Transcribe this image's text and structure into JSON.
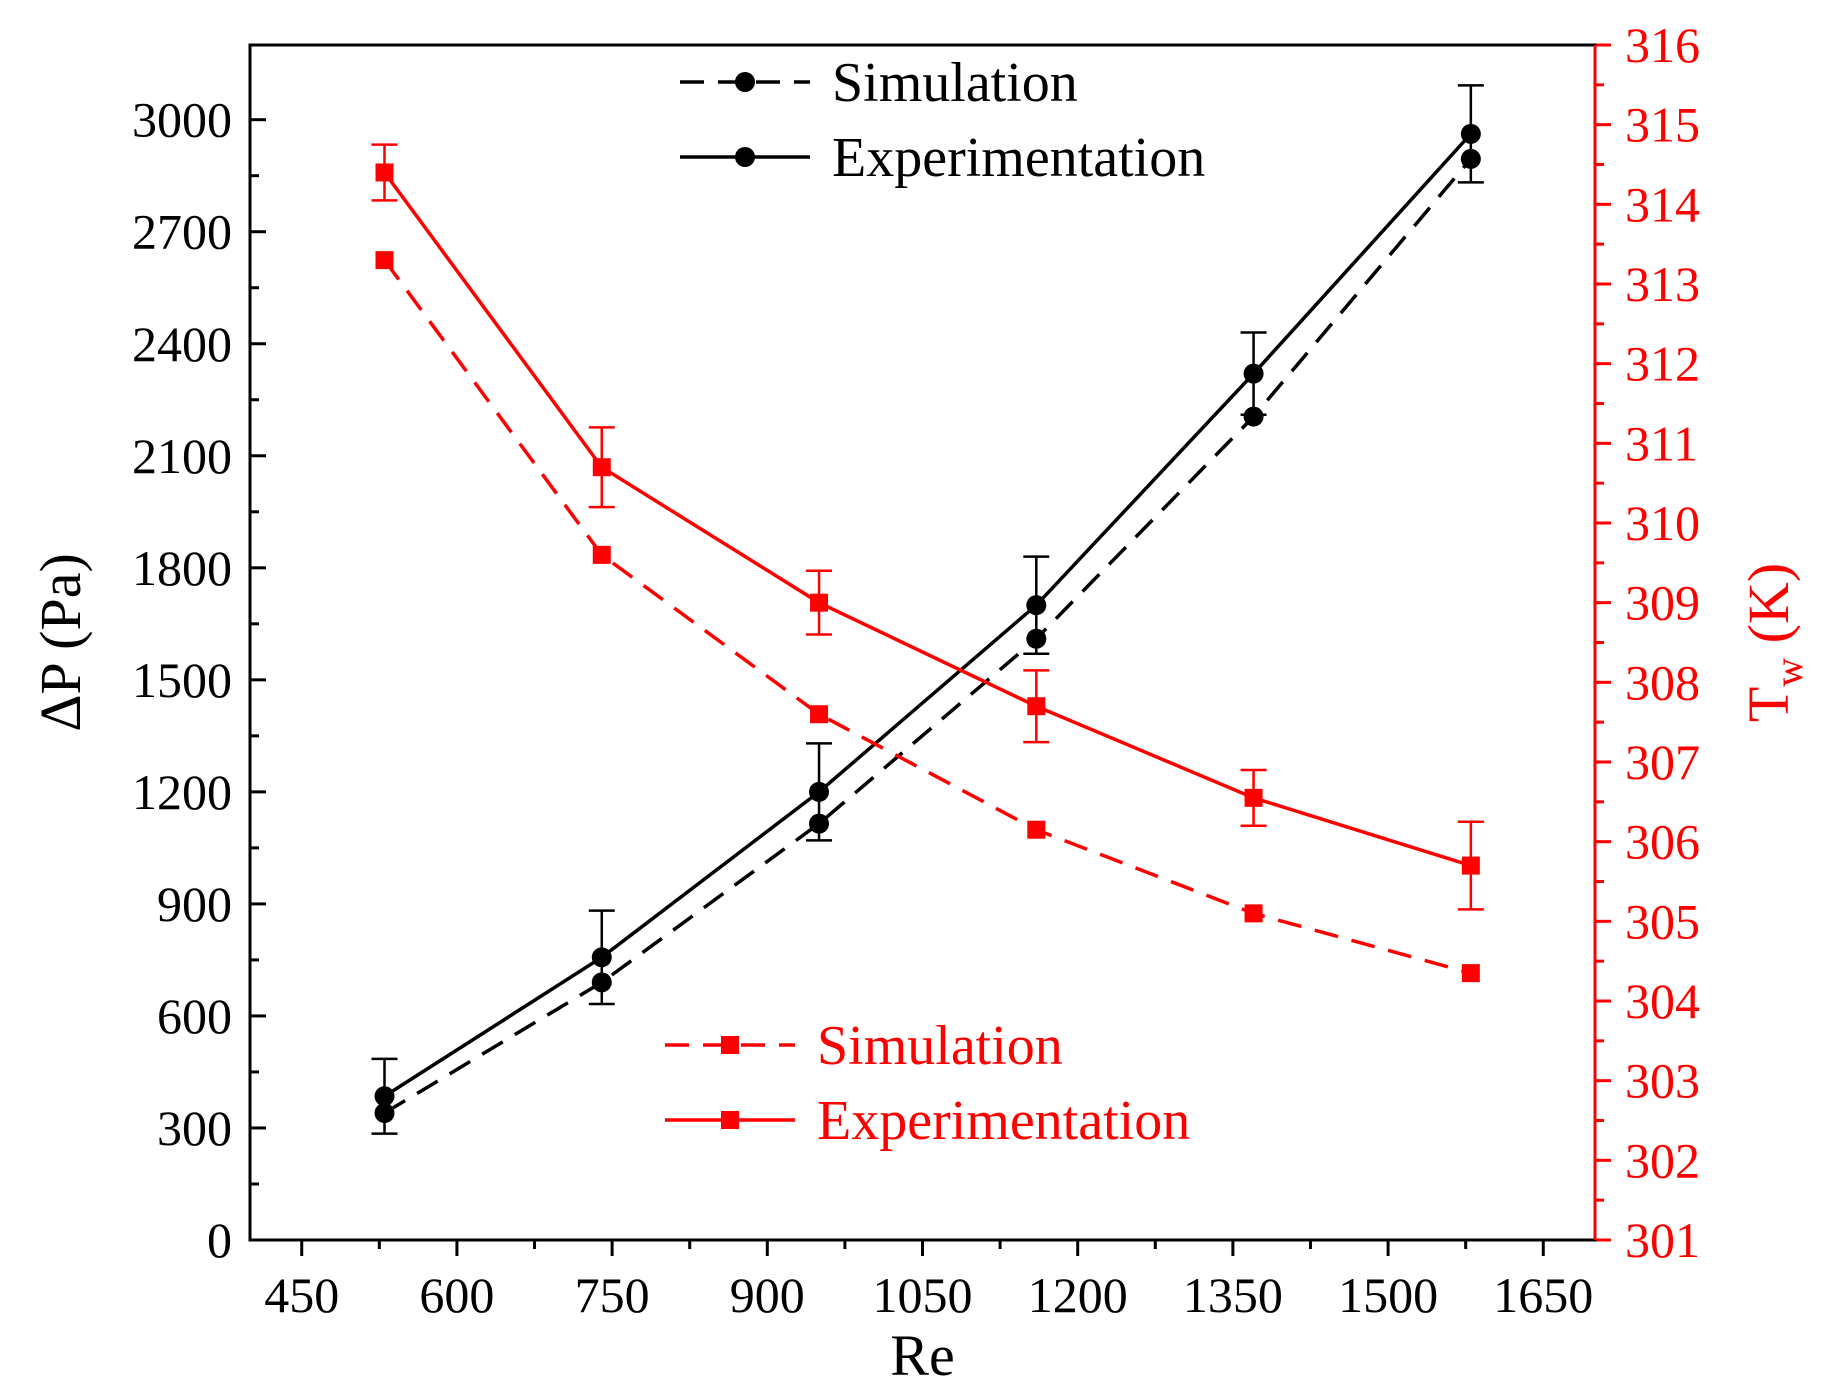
{
  "chart_data": {
    "type": "line",
    "x": [
      530,
      740,
      950,
      1160,
      1370,
      1580
    ],
    "xlabel": "Re",
    "xlim": [
      400,
      1700
    ],
    "xticks": [
      450,
      600,
      750,
      900,
      1050,
      1200,
      1350,
      1500,
      1650
    ],
    "y_left": {
      "label_main": "ΔP",
      "label_unit": " (Pa)",
      "lim": [
        0,
        3200
      ],
      "ticks": [
        0,
        300,
        600,
        900,
        1200,
        1500,
        1800,
        2100,
        2400,
        2700,
        3000
      ],
      "color": "#000000"
    },
    "y_right": {
      "label_main": "T",
      "label_sub": "w",
      "label_unit": " (K)",
      "lim": [
        301,
        316
      ],
      "ticks": [
        301,
        302,
        303,
        304,
        305,
        306,
        307,
        308,
        309,
        310,
        311,
        312,
        313,
        314,
        315,
        316
      ],
      "color": "#ff0000"
    },
    "series": [
      {
        "name": "Simulation",
        "axis": "left",
        "style": "dashed",
        "marker": "circle",
        "color": "#000000",
        "values": [
          340,
          690,
          1115,
          1610,
          2205,
          2895
        ]
      },
      {
        "name": "Experimentation",
        "axis": "left",
        "style": "solid",
        "marker": "circle",
        "color": "#000000",
        "values": [
          385,
          757,
          1200,
          1700,
          2320,
          2962
        ],
        "error": [
          100,
          125,
          130,
          130,
          110,
          130
        ]
      },
      {
        "name": "Simulation",
        "axis": "right",
        "style": "dashed",
        "marker": "square",
        "color": "#ff0000",
        "values": [
          313.3,
          309.6,
          307.6,
          306.15,
          305.1,
          304.35
        ]
      },
      {
        "name": "Experimentation",
        "axis": "right",
        "style": "solid",
        "marker": "square",
        "color": "#ff0000",
        "values": [
          314.4,
          310.7,
          309.0,
          307.7,
          306.55,
          305.7
        ],
        "error": [
          0.35,
          0.5,
          0.4,
          0.45,
          0.35,
          0.55
        ]
      }
    ],
    "legends": [
      {
        "position": "top-center",
        "entries": [
          "Simulation",
          "Experimentation"
        ],
        "color": "#000000",
        "marker": "circle"
      },
      {
        "position": "bottom-center",
        "entries": [
          "Simulation",
          "Experimentation"
        ],
        "color": "#ff0000",
        "marker": "square"
      }
    ]
  }
}
